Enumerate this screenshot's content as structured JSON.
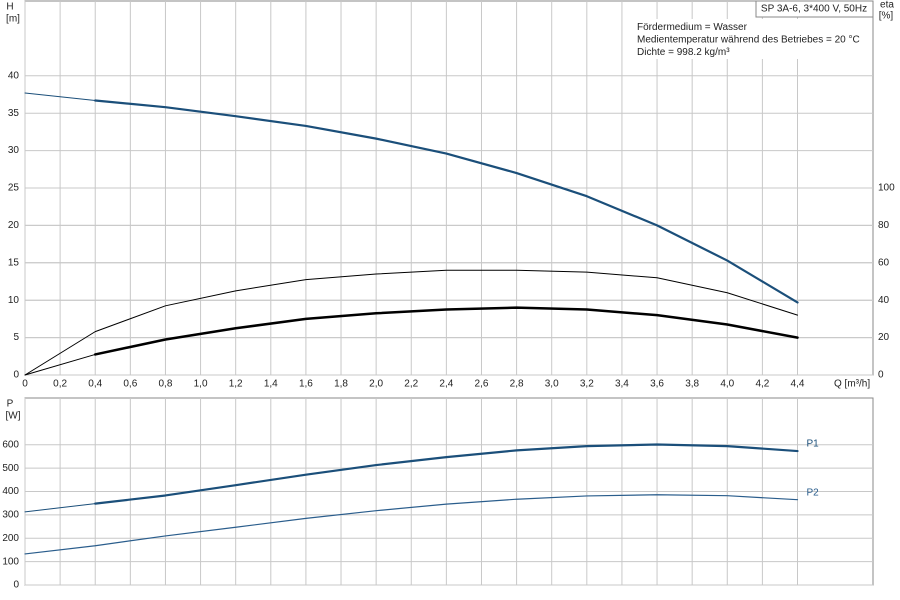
{
  "chart_data": [
    {
      "type": "line",
      "ylabel": "H",
      "yunit": "[m]",
      "y2label": "eta",
      "y2unit": "[%]",
      "xlabel": "Q [m³/h]",
      "annotations": [
        "SP 3A-6, 3*400 V, 50Hz",
        "Fördermedium = Wasser",
        "Medientemperatur während des Betriebes = 20 °C",
        "Dichte = 998.2 kg/m³"
      ],
      "x": [
        0,
        0.4,
        0.8,
        1.2,
        1.6,
        2.0,
        2.4,
        2.8,
        3.2,
        3.6,
        4.0,
        4.4
      ],
      "xlim": [
        0,
        4.83
      ],
      "xticks": [
        0,
        {
          "value": 0.2,
          "label": "0,2"
        },
        {
          "value": 0.4,
          "label": "0,4"
        },
        {
          "value": 0.6,
          "label": "0,6"
        },
        {
          "value": 0.8,
          "label": "0,8"
        },
        {
          "value": 1.0,
          "label": "1,0"
        },
        {
          "value": 1.2,
          "label": "1,2"
        },
        {
          "value": 1.4,
          "label": "1,4"
        },
        {
          "value": 1.6,
          "label": "1,6"
        },
        {
          "value": 1.8,
          "label": "1,8"
        },
        {
          "value": 2.0,
          "label": "2,0"
        },
        {
          "value": 2.2,
          "label": "2,2"
        },
        {
          "value": 2.4,
          "label": "2,4"
        },
        {
          "value": 2.6,
          "label": "2,6"
        },
        {
          "value": 2.8,
          "label": "2,8"
        },
        {
          "value": 3.0,
          "label": "3,0"
        },
        {
          "value": 3.2,
          "label": "3,2"
        },
        {
          "value": 3.4,
          "label": "3,4"
        },
        {
          "value": 3.6,
          "label": "3,6"
        },
        {
          "value": 3.8,
          "label": "3,8"
        },
        {
          "value": 4.0,
          "label": "4,0"
        },
        {
          "value": 4.2,
          "label": "4,2"
        },
        {
          "value": 4.4,
          "label": "4,4"
        }
      ],
      "ylim": [
        0,
        50
      ],
      "yticks": [
        0,
        5,
        10,
        15,
        20,
        25,
        30,
        35,
        40
      ],
      "y2lim": [
        0,
        200
      ],
      "y2ticks": [
        0,
        20,
        40,
        60,
        80,
        100
      ],
      "grid": true,
      "series": [
        {
          "color": "#1b4f7a",
          "line_width": 1,
          "values": [
            37.7,
            36.7,
            null,
            null,
            null,
            null,
            null,
            null,
            null,
            null,
            null,
            null
          ]
        },
        {
          "color": "#1b4f7a",
          "line_width": 2.2,
          "values": [
            null,
            36.7,
            35.8,
            34.6,
            33.3,
            31.6,
            29.6,
            27.0,
            23.9,
            20.0,
            15.3,
            9.7
          ]
        },
        {
          "color": "#000000",
          "line_width": 1,
          "axis": "y2",
          "values": [
            0,
            23.2,
            37,
            45,
            51,
            54,
            56,
            56,
            55,
            52,
            44,
            32
          ]
        },
        {
          "color": "#000000",
          "line_width": 1,
          "axis": "y2",
          "values": [
            0,
            11,
            null,
            null,
            null,
            null,
            null,
            null,
            null,
            null,
            null,
            null
          ]
        },
        {
          "color": "#000000",
          "line_width": 2.5,
          "axis": "y2",
          "values": [
            null,
            11,
            19,
            25,
            30,
            33,
            35,
            36,
            35,
            32,
            27,
            20
          ]
        }
      ]
    },
    {
      "type": "line",
      "ylabel": "P",
      "yunit": "[W]",
      "x": [
        0,
        0.4,
        0.8,
        1.2,
        1.6,
        2.0,
        2.4,
        2.8,
        3.2,
        3.6,
        4.0,
        4.4
      ],
      "xlim": [
        0,
        4.83
      ],
      "xticks": [
        0,
        0.2,
        0.4,
        0.6,
        0.8,
        1.0,
        1.2,
        1.4,
        1.6,
        1.8,
        2.0,
        2.2,
        2.4,
        2.6,
        2.8,
        3.0,
        3.2,
        3.4,
        3.6,
        3.8,
        4.0,
        4.2,
        4.4
      ],
      "xtick_labels": false,
      "ylim": [
        0,
        800
      ],
      "yticks": [
        0,
        100,
        200,
        300,
        400,
        500,
        600
      ],
      "grid": true,
      "series": [
        {
          "color": "#1b4f7a",
          "line_width": 1,
          "values": [
            313,
            348,
            null,
            null,
            null,
            null,
            null,
            null,
            null,
            null,
            null,
            null
          ]
        },
        {
          "name": "P1",
          "color": "#1b4f7a",
          "line_width": 2.2,
          "values": [
            null,
            348,
            383,
            427,
            472,
            513,
            547,
            576,
            594,
            601,
            594,
            573
          ]
        },
        {
          "name": "P2",
          "color": "#2a5d8c",
          "line_width": 1.2,
          "values": [
            133,
            168,
            210,
            247,
            285,
            318,
            346,
            367,
            381,
            386,
            382,
            365
          ]
        }
      ]
    }
  ]
}
